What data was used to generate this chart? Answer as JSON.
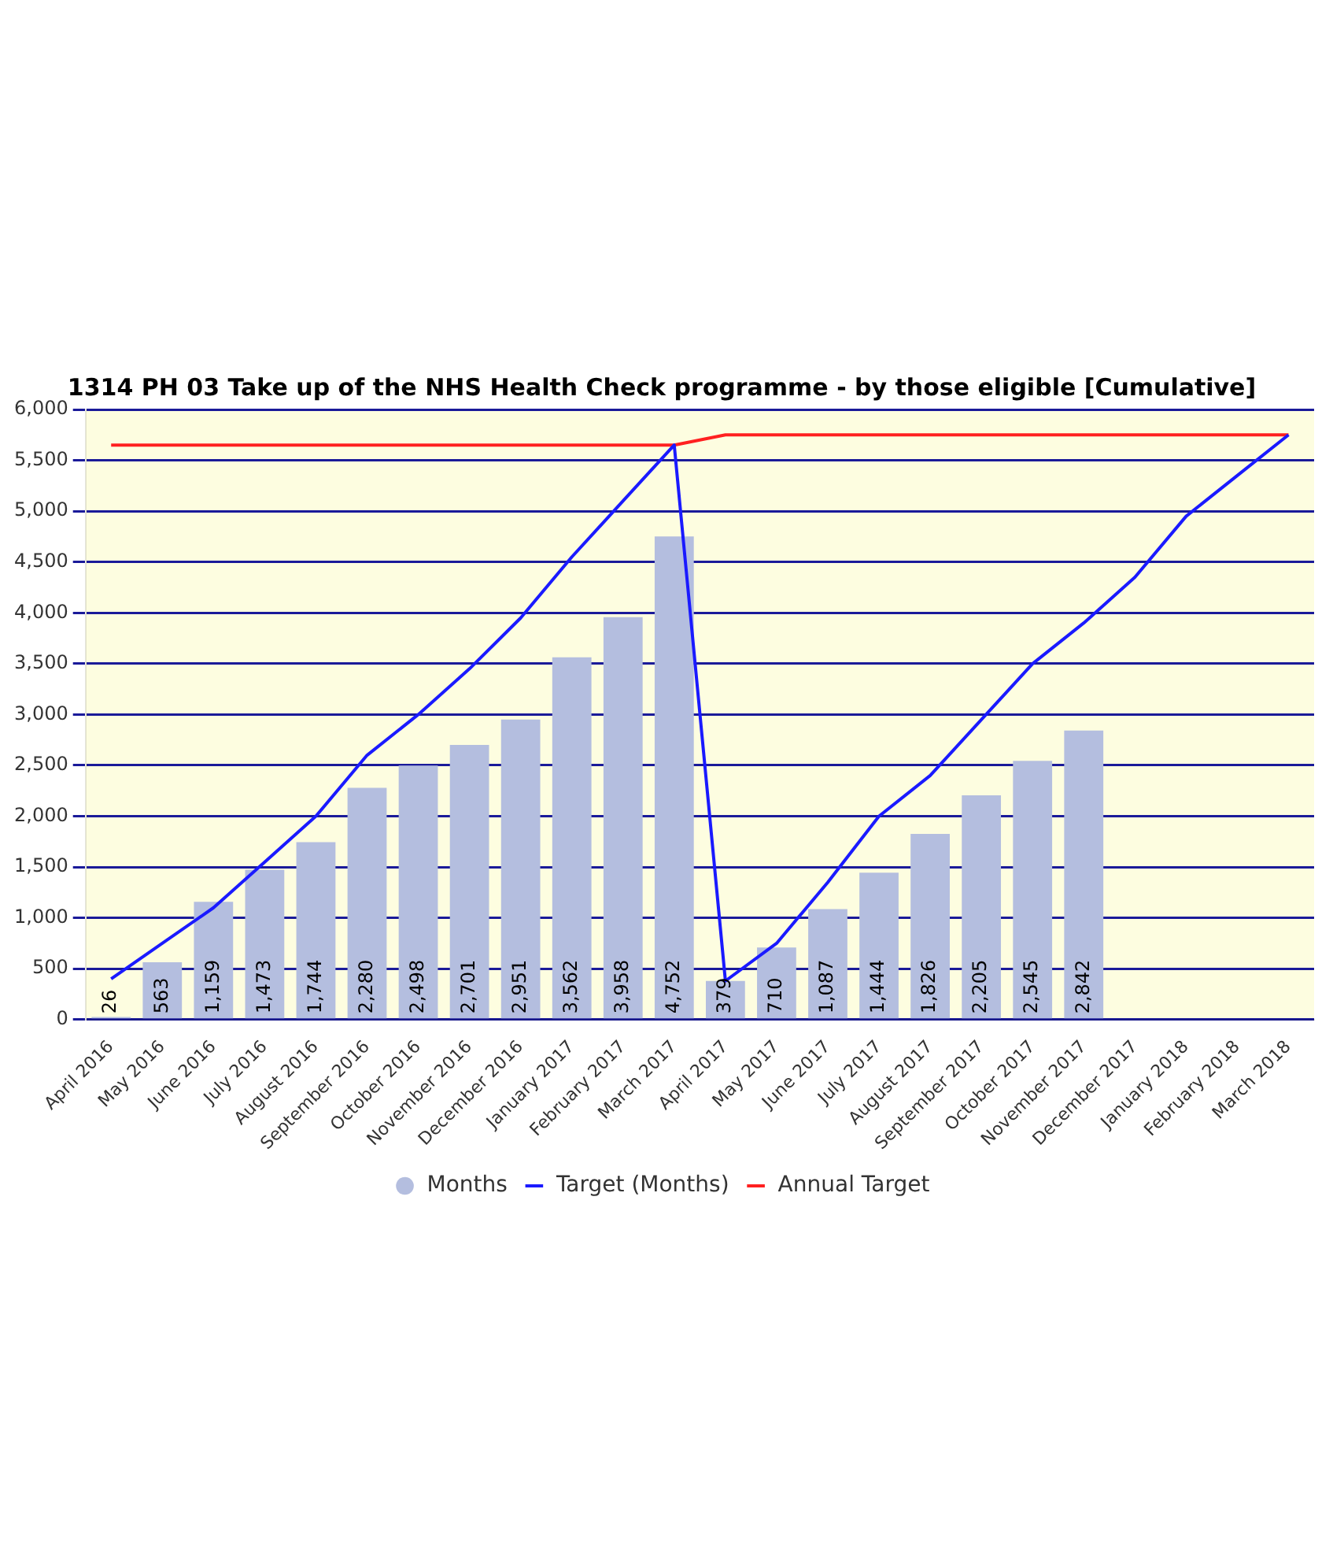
{
  "chart_data": {
    "type": "bar",
    "title": "1314 PH 03 Take up of the NHS Health Check programme - by those eligible [Cumulative]",
    "categories": [
      "April 2016",
      "May 2016",
      "June 2016",
      "July 2016",
      "August 2016",
      "September 2016",
      "October 2016",
      "November 2016",
      "December 2016",
      "January 2017",
      "February 2017",
      "March 2017",
      "April 2017",
      "May 2017",
      "June 2017",
      "July 2017",
      "August 2017",
      "September 2017",
      "October 2017",
      "November 2017",
      "December 2017",
      "January 2018",
      "February 2018",
      "March 2018"
    ],
    "series": [
      {
        "name": "Months",
        "color": "#b4bedf",
        "values": [
          26,
          563,
          1159,
          1473,
          1744,
          2280,
          2498,
          2701,
          2951,
          3562,
          3958,
          4752,
          379,
          710,
          1087,
          1444,
          1826,
          2205,
          2545,
          2842,
          null,
          null,
          null,
          null
        ],
        "value_labels": [
          "26",
          "563",
          "1,159",
          "1,473",
          "1,744",
          "2,280",
          "2,498",
          "2,701",
          "2,951",
          "3,562",
          "3,958",
          "4,752",
          "379",
          "710",
          "1,087",
          "1,444",
          "1,826",
          "2,205",
          "2,545",
          "2,842",
          null,
          null,
          null,
          null
        ]
      },
      {
        "name": "Target (Months)",
        "type": "line",
        "color": "#1a1aff",
        "values": [
          400,
          750,
          1100,
          1550,
          2000,
          2600,
          3000,
          3450,
          3950,
          4550,
          5100,
          5650,
          380,
          750,
          1350,
          2000,
          2400,
          2950,
          3500,
          3900,
          4350,
          4950,
          5350,
          5750
        ]
      },
      {
        "name": "Annual Target",
        "type": "line",
        "color": "#ff2020",
        "values": [
          5650,
          5650,
          5650,
          5650,
          5650,
          5650,
          5650,
          5650,
          5650,
          5650,
          5650,
          5650,
          5750,
          5750,
          5750,
          5750,
          5750,
          5750,
          5750,
          5750,
          5750,
          5750,
          5750,
          5750
        ]
      }
    ],
    "ylim": [
      0,
      6000
    ],
    "yticks": [
      0,
      500,
      {
        "value": 1000,
        "label": "1,000"
      },
      {
        "value": 1500,
        "label": "1,500"
      },
      {
        "value": 2000,
        "label": "2,000"
      },
      {
        "value": 2500,
        "label": "2,500"
      },
      {
        "value": 3000,
        "label": "3,000"
      },
      {
        "value": 3500,
        "label": "3,500"
      },
      {
        "value": 4000,
        "label": "4,000"
      },
      {
        "value": 4500,
        "label": "4,500"
      },
      {
        "value": 5000,
        "label": "5,000"
      },
      {
        "value": 5500,
        "label": "5,500"
      },
      {
        "value": 6000,
        "label": "6,000"
      }
    ],
    "grid": "y",
    "legend": "bottom",
    "marker": "none"
  }
}
